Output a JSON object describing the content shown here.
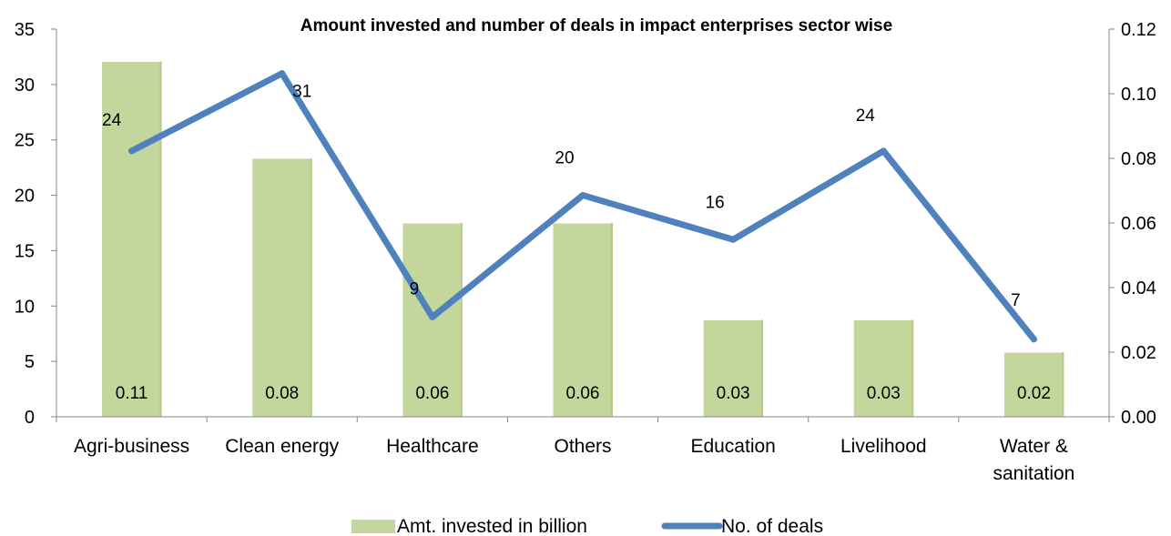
{
  "chart_data": {
    "type": "bar+line",
    "title": "Amount invested and number of deals in impact enterprises sector wise",
    "categories": [
      [
        "Agri-business"
      ],
      [
        "Clean energy"
      ],
      [
        "Healthcare"
      ],
      [
        "Others"
      ],
      [
        "Education"
      ],
      [
        "Livelihood"
      ],
      [
        "Water &",
        "sanitation"
      ]
    ],
    "series": [
      {
        "name": "Amt. invested in billion",
        "type": "bar",
        "axis": "secondary",
        "values": [
          0.11,
          0.08,
          0.06,
          0.06,
          0.03,
          0.03,
          0.02
        ],
        "labels": [
          "0.11",
          "0.08",
          "0.06",
          "0.06",
          "0.03",
          "0.03",
          "0.02"
        ],
        "color": "#c3d69b"
      },
      {
        "name": "No. of deals",
        "type": "line",
        "axis": "primary",
        "values": [
          24,
          31,
          9,
          20,
          16,
          24,
          7
        ],
        "labels": [
          "24",
          "31",
          "9",
          "20",
          "16",
          "24",
          "7"
        ],
        "color": "#4f81bd"
      }
    ],
    "primary_axis": {
      "ylim": [
        0,
        35
      ],
      "ticks": [
        "0",
        "5",
        "10",
        "15",
        "20",
        "25",
        "30",
        "35"
      ]
    },
    "secondary_axis": {
      "ylim": [
        0,
        0.12
      ],
      "ticks": [
        "0.00",
        "0.02",
        "0.04",
        "0.06",
        "0.08",
        "0.10",
        "0.12"
      ]
    },
    "grid": false,
    "legend": "bottom"
  }
}
